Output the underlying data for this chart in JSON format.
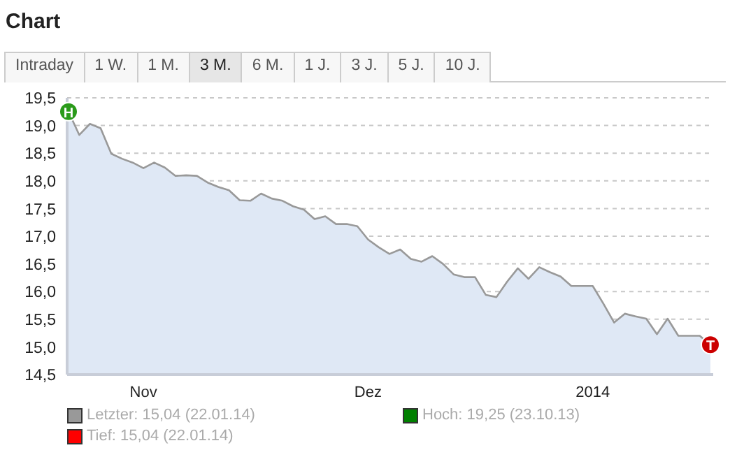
{
  "chart_data": {
    "type": "area",
    "title": "Chart",
    "categories": [
      null,
      null,
      null,
      null,
      null,
      null,
      null,
      "Nov",
      null,
      null,
      null,
      null,
      null,
      null,
      null,
      null,
      null,
      null,
      null,
      null,
      null,
      null,
      null,
      null,
      null,
      null,
      null,
      null,
      "Dez",
      null,
      null,
      null,
      null,
      null,
      null,
      null,
      null,
      null,
      null,
      null,
      null,
      null,
      null,
      null,
      null,
      null,
      null,
      null,
      null,
      "2014",
      null,
      null,
      null,
      null,
      null,
      null,
      null,
      null,
      null,
      null,
      null
    ],
    "series": [
      {
        "name": "Letzter: 15,04 (22.01.14)",
        "color": "#999999",
        "values": [
          19.25,
          18.83,
          19.03,
          18.95,
          18.49,
          18.4,
          18.33,
          18.23,
          18.33,
          18.24,
          18.09,
          18.1,
          18.09,
          17.97,
          17.89,
          17.83,
          17.65,
          17.64,
          17.77,
          17.68,
          17.64,
          17.54,
          17.48,
          17.31,
          17.36,
          17.22,
          17.22,
          17.18,
          16.94,
          16.8,
          16.68,
          16.76,
          16.59,
          16.54,
          16.64,
          16.5,
          16.31,
          16.26,
          16.26,
          15.94,
          15.9,
          16.18,
          16.42,
          16.23,
          16.44,
          16.35,
          16.27,
          16.1,
          16.1,
          16.1,
          15.78,
          15.44,
          15.6,
          15.55,
          15.51,
          15.23,
          15.51,
          15.2,
          15.2,
          15.2,
          15.04
        ]
      }
    ],
    "ylim": [
      14.5,
      19.5
    ],
    "yticks": [
      {
        "value": 14.5,
        "label": "14,5"
      },
      {
        "value": 15,
        "label": "15,0"
      },
      {
        "value": 15.5,
        "label": "15,5"
      },
      {
        "value": 16,
        "label": "16,0"
      },
      {
        "value": 16.5,
        "label": "16,5"
      },
      {
        "value": 17,
        "label": "17,0"
      },
      {
        "value": 17.5,
        "label": "17,5"
      },
      {
        "value": 18,
        "label": "18,0"
      },
      {
        "value": 18.5,
        "label": "18,5"
      },
      {
        "value": 19,
        "label": "19,0"
      },
      {
        "value": 19.5,
        "label": "19,5"
      }
    ],
    "grid": "y",
    "legend": "bottom",
    "annotations": [
      "Intraday",
      "1 W.",
      "1 M.",
      "3 M.",
      "6 M.",
      "1 J.",
      "3 J.",
      "5 J.",
      "10 J.",
      {
        "text": "H",
        "y": 19.25
      },
      {
        "text": "T",
        "y": 15.04
      },
      "Hoch: 19,25 (23.10.13)",
      "Tief: 15,04 (22.01.14)"
    ]
  }
}
